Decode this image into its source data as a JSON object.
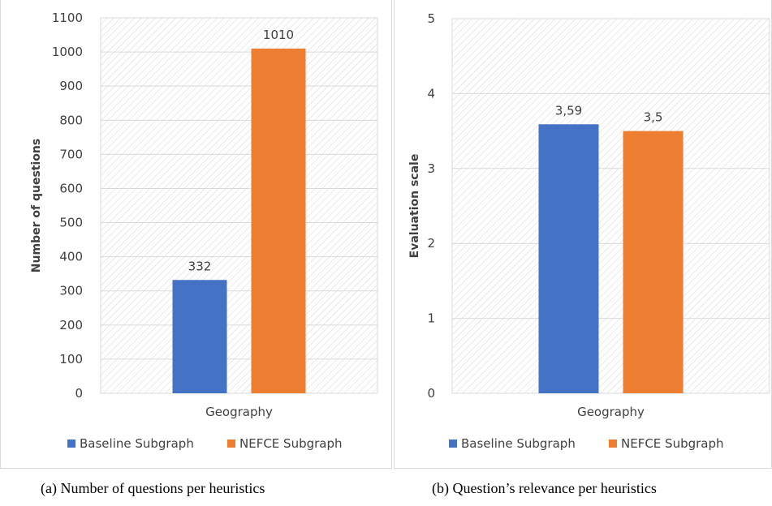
{
  "colors": {
    "baseline": "#4472C4",
    "nefce": "#ED7D31",
    "grid": "#d9d9d9",
    "hatch": "#d6d6d6",
    "text": "#404040"
  },
  "captions": {
    "a": "(a) Number of questions per heuristics",
    "b": "(b) Question’s relevance per heuristics"
  },
  "chart_data": [
    {
      "type": "bar",
      "categories": [
        "Geography"
      ],
      "series": [
        {
          "name": "Baseline Subgraph",
          "values": [
            332
          ],
          "label": "332",
          "color": "#4472C4"
        },
        {
          "name": "NEFCE Subgraph",
          "values": [
            1010
          ],
          "label": "1010",
          "color": "#ED7D31"
        }
      ],
      "ylabel": "Number of questions",
      "ylim": [
        0,
        1100
      ],
      "yticks": [
        0,
        100,
        200,
        300,
        400,
        500,
        600,
        700,
        800,
        900,
        1000,
        1100
      ],
      "ytick_labels": [
        "0",
        "100",
        "200",
        "300",
        "400",
        "500",
        "600",
        "700",
        "800",
        "900",
        "1000",
        "1100"
      ],
      "grid": true,
      "legend_position": "bottom"
    },
    {
      "type": "bar",
      "categories": [
        "Geography"
      ],
      "series": [
        {
          "name": "Baseline Subgraph",
          "values": [
            3.59
          ],
          "label": "3,59",
          "color": "#4472C4"
        },
        {
          "name": "NEFCE Subgraph",
          "values": [
            3.5
          ],
          "label": "3,5",
          "color": "#ED7D31"
        }
      ],
      "ylabel": "Evaluation scale",
      "ylim": [
        0,
        5
      ],
      "yticks": [
        0,
        1,
        2,
        3,
        4,
        5
      ],
      "ytick_labels": [
        "0",
        "1",
        "2",
        "3",
        "4",
        "5"
      ],
      "grid": true,
      "legend_position": "bottom"
    }
  ]
}
